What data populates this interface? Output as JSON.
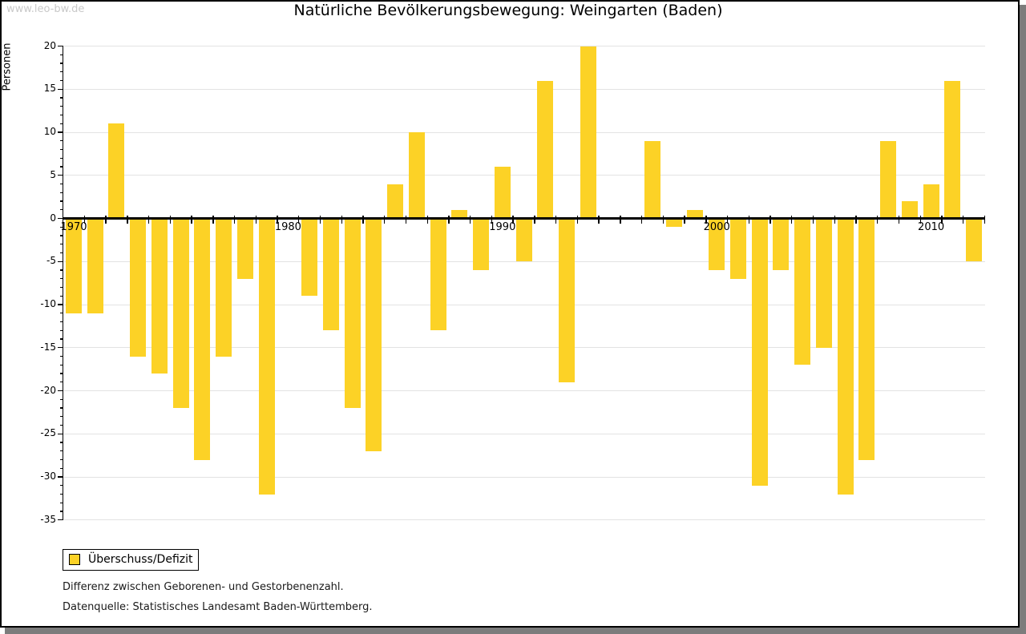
{
  "watermark": "www.leo-bw.de",
  "title": "Natürliche Bevölkerungsbewegung: Weingarten (Baden)",
  "y_axis_label": "Personen",
  "legend": {
    "label": "Überschuss/Defizit"
  },
  "notes": [
    "Differenz zwischen Geborenen- und Gestorbenenzahl.",
    "Datenquelle: Statistisches Landesamt Baden-Württemberg."
  ],
  "colors": {
    "bar": "#FCD226",
    "grid": "#E3E3E3",
    "axis": "#000000",
    "watermark": "#C9C9C9",
    "shadow": "#7C7C7C"
  },
  "chart_data": {
    "type": "bar",
    "title": "Natürliche Bevölkerungsbewegung: Weingarten (Baden)",
    "xlabel": "",
    "ylabel": "Personen",
    "ylim": [
      -35,
      20
    ],
    "ytick_step": 5,
    "y_tick_labels": [
      20,
      15,
      10,
      5,
      0,
      -5,
      -10,
      -15,
      -20,
      -25,
      -30,
      -35
    ],
    "minor_tick_step": 1,
    "grid": true,
    "legend_position": "bottom-left",
    "x_labels": [
      1970,
      1980,
      1990,
      2000,
      2010
    ],
    "series_name": "Überschuss/Defizit",
    "years": [
      1970,
      1971,
      1972,
      1973,
      1974,
      1975,
      1976,
      1977,
      1978,
      1979,
      1980,
      1981,
      1982,
      1983,
      1984,
      1985,
      1986,
      1987,
      1988,
      1989,
      1990,
      1991,
      1992,
      1993,
      1994,
      1995,
      1996,
      1997,
      1998,
      1999,
      2000,
      2001,
      2002,
      2003,
      2004,
      2005,
      2006,
      2007,
      2008,
      2009,
      2010,
      2011,
      2012
    ],
    "values": [
      -11,
      -11,
      11,
      -16,
      -18,
      -22,
      -28,
      -16,
      -7,
      -32,
      0,
      -9,
      -13,
      -22,
      -27,
      4,
      10,
      -13,
      1,
      -6,
      6,
      -5,
      16,
      -19,
      20,
      0,
      0,
      9,
      -1,
      1,
      -6,
      -7,
      -31,
      -6,
      -17,
      -15,
      -32,
      -28,
      9,
      2,
      4,
      16,
      -5
    ]
  }
}
